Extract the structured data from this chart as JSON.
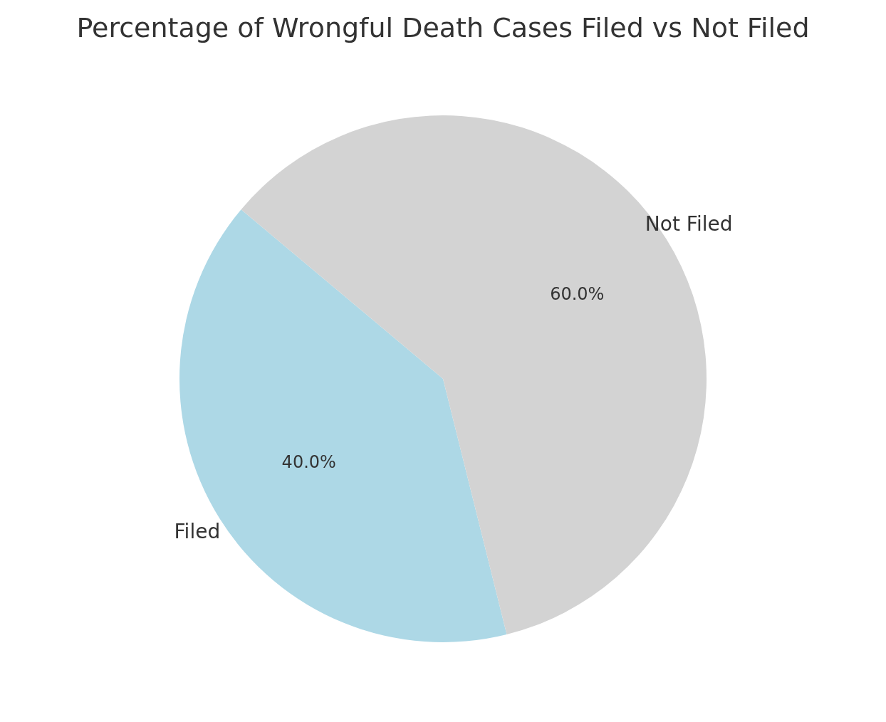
{
  "chart_data": {
    "type": "pie",
    "title": "Percentage of Wrongful Death Cases Filed vs Not Filed",
    "categories": [
      "Filed",
      "Not Filed"
    ],
    "values": [
      40,
      60
    ],
    "colors": [
      "#add8e6",
      "#d3d3d3"
    ],
    "value_labels": [
      "40.0%",
      "60.0%"
    ]
  }
}
